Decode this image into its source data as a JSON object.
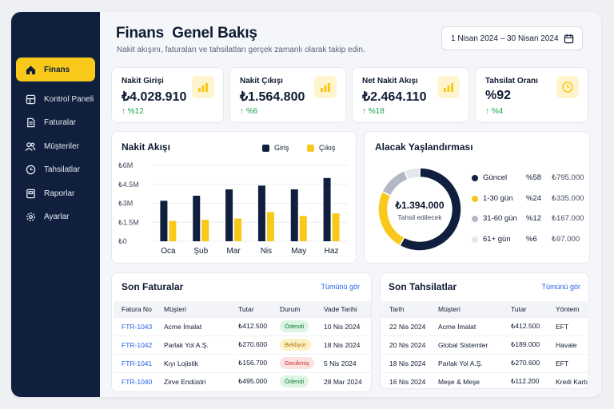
{
  "sidebar": {
    "items": [
      {
        "label": "Finans",
        "icon": "home-icon",
        "active": true
      },
      {
        "label": "Kontrol Paneli",
        "icon": "dashboard-icon"
      },
      {
        "label": "Faturalar",
        "icon": "invoice-icon"
      },
      {
        "label": "Müşteriler",
        "icon": "users-icon"
      },
      {
        "label": "Tahsilatlar",
        "icon": "clock-icon"
      },
      {
        "label": "Raporlar",
        "icon": "report-icon"
      },
      {
        "label": "Ayarlar",
        "icon": "gear-icon"
      }
    ]
  },
  "header": {
    "title": "Finans  Genel Bakış",
    "subtitle": "Nakit akışını, faturaları ve tahsilatları gerçek zamanlı olarak takip edin.",
    "date_range": "1 Nisan 2024 – 30 Nisan 2024"
  },
  "kpis": [
    {
      "label": "Nakit Girişi",
      "value": "₺4.028.910",
      "delta": "↑ %12",
      "icon": "bar-chart-icon"
    },
    {
      "label": "Nakit Çıkışı",
      "value": "₺1.564.800",
      "delta": "↑ %6",
      "icon": "bar-chart-icon"
    },
    {
      "label": "Net Nakit Akışı",
      "value": "₺2.464.110",
      "delta": "↑ %18",
      "icon": "bar-chart-icon"
    },
    {
      "label": "Tahsilat Oranı",
      "value": "%92",
      "delta": "↑ %4",
      "icon": "clock-icon"
    }
  ],
  "cashflow": {
    "title": "Nakit Akışı",
    "legend": [
      "Giriş",
      "Çıkış"
    ],
    "ytick_labels": [
      "₺0",
      "₺1.5M",
      "₺3M",
      "₺4.5M",
      "₺6M"
    ]
  },
  "chart_data": {
    "type": "bar",
    "title": "Nakit Akışı",
    "categories": [
      "Oca",
      "Şub",
      "Mar",
      "Nis",
      "May",
      "Haz"
    ],
    "series": [
      {
        "name": "Giriş",
        "values": [
          3.2,
          3.6,
          4.1,
          4.4,
          4.1,
          5.0
        ]
      },
      {
        "name": "Çıkış",
        "values": [
          1.6,
          1.7,
          1.8,
          2.3,
          2.0,
          2.2
        ]
      }
    ],
    "ylim": [
      0,
      6
    ],
    "ylabel": "",
    "xlabel": "",
    "grid": true,
    "legend_position": "top-right",
    "colors": [
      "#0f1f3d",
      "#f8c91a"
    ]
  },
  "aging": {
    "title": "Alacak Yaşlandırması",
    "total": "₺1.394.000",
    "total_label": "Tahsil edilecek",
    "segments": [
      {
        "label": "Güncel",
        "pct": "%58",
        "amount": "₺795.000",
        "value": 58,
        "color": "#0f1f3d"
      },
      {
        "label": "1-30 gün",
        "pct": "%24",
        "amount": "₺335.000",
        "value": 24,
        "color": "#f8c91a"
      },
      {
        "label": "31-60 gün",
        "pct": "%12",
        "amount": "₺167.000",
        "value": 12,
        "color": "#b3b8c6"
      },
      {
        "label": "61+ gün",
        "pct": "%6",
        "amount": "₺97.000",
        "value": 6,
        "color": "#e3e6ec"
      }
    ]
  },
  "invoices": {
    "title": "Son Faturalar",
    "see_all": "Tümünü gör",
    "columns": [
      "Fatura No",
      "Müşteri",
      "Tutar",
      "Durum",
      "Vade Tarihi"
    ],
    "rows": [
      {
        "no": "FTR-1043",
        "customer": "Acme İmalat",
        "amount": "₺412.500",
        "status": "Ödendi",
        "due": "10 Nis 2024"
      },
      {
        "no": "FTR-1042",
        "customer": "Parlak Yol A.Ş.",
        "amount": "₺270.600",
        "status": "Bekliyor",
        "due": "18 Nis 2024"
      },
      {
        "no": "FTR-1041",
        "customer": "Kıyı Lojistik",
        "amount": "₺156.700",
        "status": "Gecikmiş",
        "due": "5 Nis 2024"
      },
      {
        "no": "FTR-1040",
        "customer": "Zirve Endüstri",
        "amount": "₺495.000",
        "status": "Ödendi",
        "due": "28 Mar 2024"
      }
    ]
  },
  "payments": {
    "title": "Son Tahsilatlar",
    "see_all": "Tümünü gör",
    "columns": [
      "Tarih",
      "Müşteri",
      "Tutar",
      "Yöntem"
    ],
    "rows": [
      {
        "date": "22 Nis 2024",
        "customer": "Acme İmalat",
        "amount": "₺412.500",
        "method": "EFT"
      },
      {
        "date": "20 Nis 2024",
        "customer": "Global Sistemler",
        "amount": "₺189.000",
        "method": "Havale"
      },
      {
        "date": "18 Nis 2024",
        "customer": "Parlak Yol A.Ş.",
        "amount": "₺270.600",
        "method": "EFT"
      },
      {
        "date": "16 Nis 2024",
        "customer": "Meşe & Meşe",
        "amount": "₺112.200",
        "method": "Kredi Kartı"
      }
    ]
  }
}
